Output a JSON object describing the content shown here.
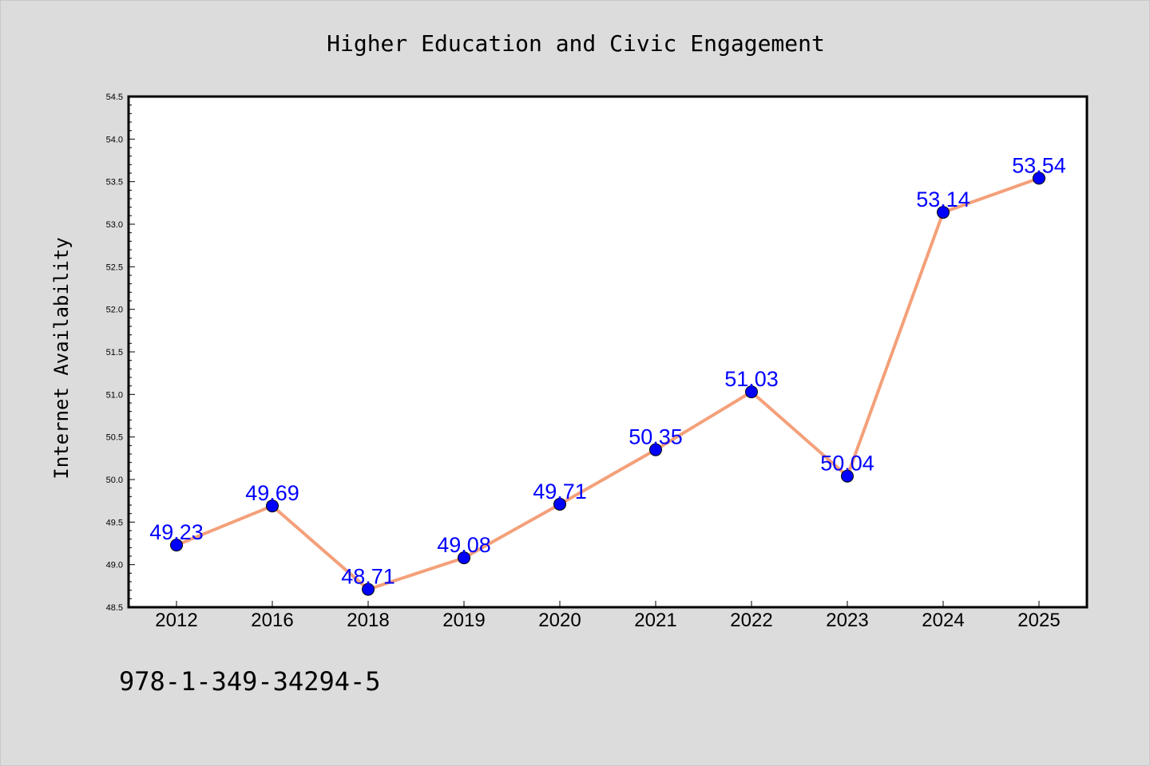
{
  "chart_data": {
    "type": "line",
    "title": "Higher Education and Civic Engagement",
    "xlabel": "",
    "ylabel": "Internet Availability",
    "categories": [
      "2012",
      "2016",
      "2018",
      "2019",
      "2020",
      "2021",
      "2022",
      "2023",
      "2024",
      "2025"
    ],
    "series": [
      {
        "values": [
          49.23,
          49.69,
          48.71,
          49.08,
          49.71,
          50.35,
          51.03,
          50.04,
          53.14,
          53.54
        ]
      }
    ],
    "data_labels": [
      "49.23",
      "49.69",
      "48.71",
      "49.08",
      "49.71",
      "50.35",
      "51.03",
      "50.04",
      "53.14",
      "53.54"
    ],
    "ylim": [
      48.5,
      54.5
    ],
    "yticks": [
      "48.5",
      "49.0",
      "49.5",
      "50.0",
      "50.5",
      "51.0",
      "51.5",
      "52.0",
      "52.5",
      "53.0",
      "53.5",
      "54.0",
      "54.5"
    ],
    "grid": false,
    "legend": "none",
    "colors": {
      "line": "#f4a07a",
      "marker": "#0000ff",
      "label": "#0000ff",
      "background": "#dcdcdc",
      "plot_background": "#ffffff"
    }
  },
  "footer": {
    "text": "978-1-349-34294-5"
  }
}
